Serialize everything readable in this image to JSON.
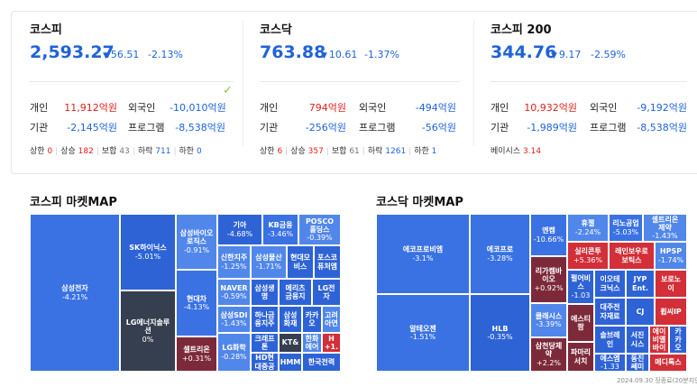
{
  "indices": [
    {
      "title": "코스피",
      "value": "2,593.27",
      "change": "56.51",
      "change_pct": "-2.13%",
      "investors": [
        {
          "label1": "개인",
          "val1": "11,912억원",
          "label2": "외국인",
          "val2": "-10,010억원"
        },
        {
          "label1": "기관",
          "val1": "-2,145억원",
          "label2": "프로그램",
          "val2": "-8,538억원"
        }
      ],
      "stats": [
        {
          "label": "상한",
          "value": "0"
        },
        {
          "label": "상승",
          "value": "182"
        },
        {
          "label": "보합",
          "value": "43"
        },
        {
          "label": "하락",
          "value": "711"
        },
        {
          "label": "하한",
          "value": "0"
        }
      ]
    },
    {
      "title": "코스닥",
      "value": "763.88",
      "change": "10.61",
      "change_pct": "-1.37%",
      "investors": [
        {
          "label1": "개인",
          "val1": "794억원",
          "label2": "외국인",
          "val2": "-494억원"
        },
        {
          "label1": "기관",
          "val1": "-256억원",
          "label2": "프로그램",
          "val2": "-56억원"
        }
      ],
      "stats": [
        {
          "label": "상한",
          "value": "6"
        },
        {
          "label": "상승",
          "value": "357"
        },
        {
          "label": "보합",
          "value": "61"
        },
        {
          "label": "하락",
          "value": "1261"
        },
        {
          "label": "하한",
          "value": "1"
        }
      ]
    },
    {
      "title": "코스피 200",
      "value": "344.76",
      "change": "9.17",
      "change_pct": "-2.59%",
      "investors": [
        {
          "label1": "개인",
          "val1": "10,932억원",
          "label2": "외국인",
          "val2": "-9,192억원"
        },
        {
          "label1": "기관",
          "val1": "-1,989억원",
          "label2": "프로그램",
          "val2": "-8,538억원"
        }
      ],
      "basis_label": "베이시스",
      "basis_value": "3.14"
    }
  ],
  "kospi_map": {
    "title": "코스피 마켓MAP",
    "tiles": [
      {
        "name": "삼성전자",
        "pct": "-4.21%",
        "color": "b1"
      },
      {
        "name": "SK하이닉스",
        "pct": "-5.01%",
        "color": "b2"
      },
      {
        "name": "LG에너지솔루\n션",
        "pct": "0%",
        "color": "dk"
      },
      {
        "name": "삼성바이오\n로직스",
        "pct": "-0.91%",
        "color": "b3"
      },
      {
        "name": "현대차",
        "pct": "-4.13%",
        "color": "b1"
      },
      {
        "name": "셀트리온",
        "pct": "+0.31%",
        "color": "mr"
      },
      {
        "name": "기아",
        "pct": "-4.68%",
        "color": "b2"
      },
      {
        "name": "KB금융",
        "pct": "-3.46%",
        "color": "b1"
      },
      {
        "name": "POSCO\n홀딩스",
        "pct": "-0.39%",
        "color": "b3"
      },
      {
        "name": "신한지주",
        "pct": "-1.25%",
        "color": "b3"
      },
      {
        "name": "삼성물산",
        "pct": "-1.71%",
        "color": "b3"
      },
      {
        "name": "현대모\n비스",
        "pct": "",
        "color": "b2"
      },
      {
        "name": "포스코\n퓨처엠",
        "pct": "",
        "color": "b2"
      },
      {
        "name": "NAVER",
        "pct": "-0.59%",
        "color": "b3"
      },
      {
        "name": "삼성생\n명",
        "pct": "",
        "color": "b2"
      },
      {
        "name": "메리츠\n금융지",
        "pct": "",
        "color": "b2"
      },
      {
        "name": "LG전\n자",
        "pct": "",
        "color": "b2"
      },
      {
        "name": "삼성SDI",
        "pct": "-1.43%",
        "color": "b3"
      },
      {
        "name": "하나금\n융지주",
        "pct": "",
        "color": "b2"
      },
      {
        "name": "삼성\n화재",
        "pct": "",
        "color": "b2"
      },
      {
        "name": "카카\n오",
        "pct": "",
        "color": "b2"
      },
      {
        "name": "고려\n아연",
        "pct": "",
        "color": "b3"
      },
      {
        "name": "LG화학",
        "pct": "-0.28%",
        "color": "b3"
      },
      {
        "name": "크래프\n톤",
        "pct": "",
        "color": "b2"
      },
      {
        "name": "KT&",
        "pct": "",
        "color": "dk"
      },
      {
        "name": "한화\n에어",
        "pct": "",
        "color": "b3"
      },
      {
        "name": "H\n+1.",
        "pct": "",
        "color": "r1"
      },
      {
        "name": "HD현\n대중공",
        "pct": "",
        "color": "b2"
      },
      {
        "name": "HMM",
        "pct": "",
        "color": "b2"
      },
      {
        "name": "한국전력",
        "pct": "",
        "color": "b2"
      }
    ]
  },
  "kosdaq_map": {
    "title": "코스닥 마켓MAP",
    "tiles": [
      {
        "name": "에코프로비엠",
        "pct": "-3.1%",
        "color": "b1"
      },
      {
        "name": "에코프로",
        "pct": "-3.28%",
        "color": "b1"
      },
      {
        "name": "알테오젠",
        "pct": "-1.51%",
        "color": "b1"
      },
      {
        "name": "HLB",
        "pct": "-0.35%",
        "color": "b2"
      },
      {
        "name": "엔켐",
        "pct": "-10.66%",
        "color": "b1"
      },
      {
        "name": "리가켐바\n이오",
        "pct": "+0.92%",
        "color": "mr"
      },
      {
        "name": "클래시스",
        "pct": "-3.39%",
        "color": "b3"
      },
      {
        "name": "삼천당제\n약",
        "pct": "+2.2%",
        "color": "mr"
      },
      {
        "name": "휴젤",
        "pct": "-2.24%",
        "color": "b3"
      },
      {
        "name": "리노공업",
        "pct": "-5.03%",
        "color": "b1"
      },
      {
        "name": "셀트리온\n제약",
        "pct": "-1.43%",
        "color": "b3"
      },
      {
        "name": "실리콘투",
        "pct": "+5.36%",
        "color": "r1"
      },
      {
        "name": "레인보우로\n보틱스",
        "pct": "",
        "color": "r1"
      },
      {
        "name": "HPSP",
        "pct": "-1.74%",
        "color": "b3"
      },
      {
        "name": "펄어비\n스",
        "pct": "-1.03",
        "color": "b2"
      },
      {
        "name": "이오테\n크닉스",
        "pct": "",
        "color": "b2"
      },
      {
        "name": "JYP\nEnt.",
        "pct": "",
        "color": "b2"
      },
      {
        "name": "보로노\n이",
        "pct": "",
        "color": "r1"
      },
      {
        "name": "대주전\n자재료",
        "pct": "",
        "color": "b2"
      },
      {
        "name": "CJ",
        "pct": "",
        "color": "b2"
      },
      {
        "name": "휩씨IP",
        "pct": "",
        "color": "r1"
      },
      {
        "name": "에스티\n팜",
        "pct": "",
        "color": "mr"
      },
      {
        "name": "솔브레\n인",
        "pct": "",
        "color": "b2"
      },
      {
        "name": "서진\n시스",
        "pct": "",
        "color": "b2"
      },
      {
        "name": "에이\n비엘\n바이",
        "pct": "",
        "color": "r1"
      },
      {
        "name": "카\n카\n오",
        "pct": "",
        "color": "b2"
      },
      {
        "name": "파마리\n서치",
        "pct": "",
        "color": "mr"
      },
      {
        "name": "에스엠",
        "pct": "-1.33",
        "color": "b2"
      },
      {
        "name": "동진\n쎄미",
        "pct": "",
        "color": "b2"
      },
      {
        "name": "메디톡스",
        "pct": "",
        "color": "r1"
      }
    ]
  },
  "footer": "2024.09.30 장종료(20분지연)"
}
